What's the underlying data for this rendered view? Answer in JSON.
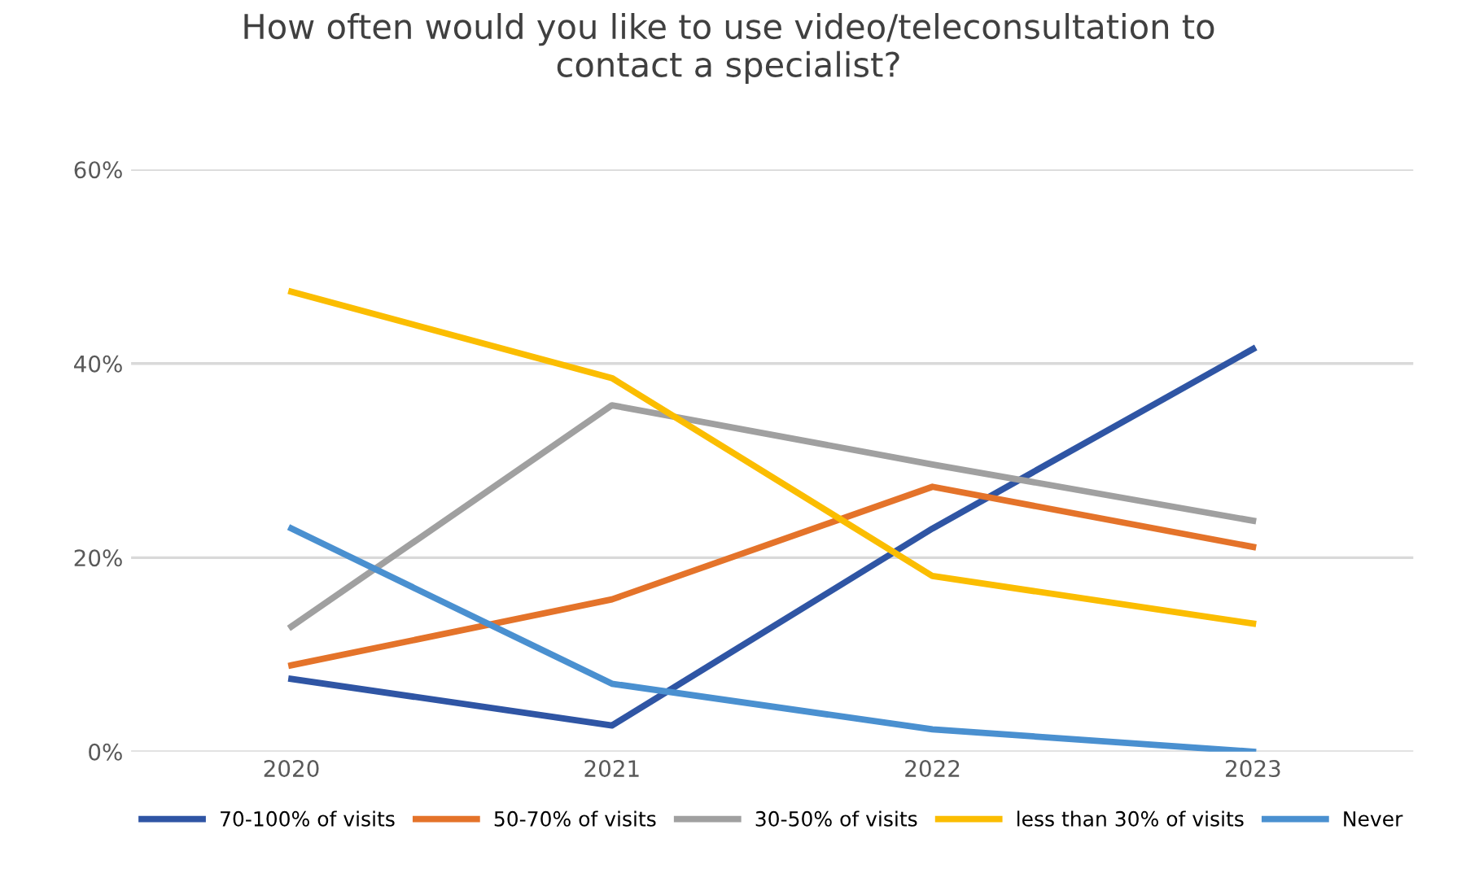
{
  "chart_data": {
    "type": "line",
    "title": "How often would you like to use video/teleconsultation to\ncontact a specialist?",
    "categories": [
      "2020",
      "2021",
      "2022",
      "2023"
    ],
    "series": [
      {
        "name": "70-100% of visits",
        "color": "#2f55a4",
        "values": [
          7.5,
          2.7,
          23,
          41.5
        ]
      },
      {
        "name": "50-70% of visits",
        "color": "#e4732a",
        "values": [
          8.9,
          15.7,
          27.3,
          21.1
        ]
      },
      {
        "name": "30-50% of visits",
        "color": "#a0a0a0",
        "values": [
          12.9,
          35.7,
          29.6,
          23.8
        ]
      },
      {
        "name": "less than 30% of visits",
        "color": "#fbbd00",
        "values": [
          47.4,
          38.5,
          18.1,
          13.2
        ]
      },
      {
        "name": "Never",
        "color": "#4a90d0",
        "values": [
          23,
          7,
          2.3,
          0
        ]
      }
    ],
    "ylim": [
      0,
      60
    ],
    "yticks": [
      {
        "value": 0,
        "label": "0%"
      },
      {
        "value": 20,
        "label": "20%"
      },
      {
        "value": 40,
        "label": "40%"
      },
      {
        "value": 60,
        "label": "60%"
      }
    ],
    "grid": "y",
    "legend": "bottom",
    "marker": "none",
    "line_style": "solid"
  }
}
